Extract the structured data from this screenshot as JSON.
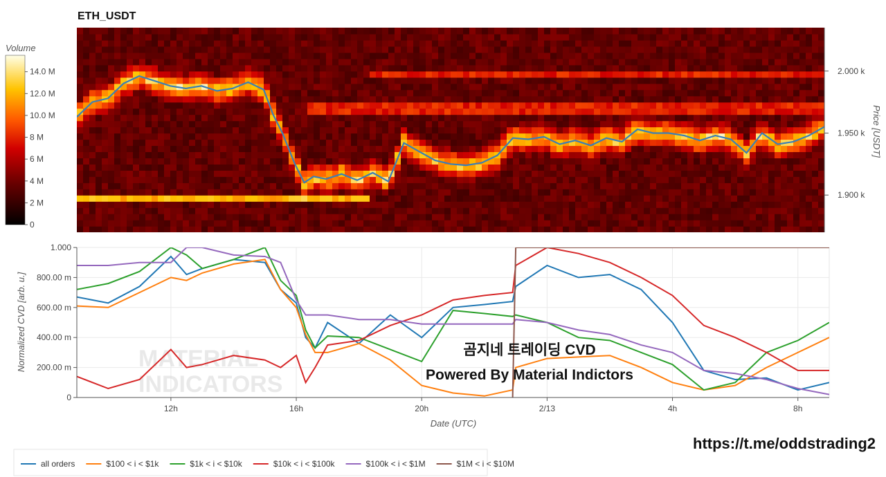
{
  "title": "ETH_USDT",
  "colorbar": {
    "title": "Volume",
    "ticks": [
      "0",
      "2 M",
      "4 M",
      "6 M",
      "8 M",
      "10.0 M",
      "12.0 M",
      "14.0 M"
    ]
  },
  "overlay": {
    "title_line": "곰지네 트레이딩 CVD",
    "subtitle_line": "Powered By Material Indictors",
    "watermark_line1": "MATERIAL",
    "watermark_line2": "INDICATORS"
  },
  "url": "https://t.me/oddstrading2",
  "colors": {
    "all_orders": "#1f77b4",
    "s100_1k": "#ff7f0e",
    "s1k_10k": "#2ca02c",
    "s10k_100k": "#d62728",
    "s100k_1m": "#9467bd",
    "s1m_10m": "#8c564b",
    "price_line": "#3a7fb8"
  },
  "chart_data": [
    {
      "type": "heatmap",
      "title": "ETH_USDT",
      "ylabel": "Price [USDT]",
      "x_range": [
        "2/12 09:00",
        "2/13 09:00"
      ],
      "ylim": [
        1870,
        2035
      ],
      "y_ticks": [
        "1.900 k",
        "1.950 k",
        "2.000 k"
      ],
      "y_tick_values": [
        1900,
        1950,
        2000
      ],
      "zlabel": "Volume",
      "z_range": [
        0,
        15500000
      ],
      "notable_bands": [
        {
          "price": 1897,
          "x_range": [
            "09:00",
            "18:20"
          ],
          "intensity": "high"
        },
        {
          "price": 1970,
          "x_range": [
            "16:30",
            "09:00"
          ],
          "intensity": "medium"
        },
        {
          "price": 1998,
          "x_range": [
            "18:30",
            "09:00"
          ],
          "intensity": "medium"
        }
      ],
      "price_line": {
        "name": "price",
        "x_hours": [
          0,
          0.5,
          1,
          1.5,
          2,
          2.5,
          3,
          3.5,
          4,
          4.5,
          5,
          5.5,
          6,
          6.3,
          6.6,
          7,
          7.3,
          7.6,
          8,
          8.5,
          9,
          9.5,
          10,
          10.5,
          11,
          11.5,
          12,
          12.5,
          13,
          13.5,
          14,
          14.5,
          15,
          15.5,
          16,
          16.5,
          17,
          17.5,
          18,
          18.5,
          19,
          19.5,
          20,
          20.5,
          21,
          21.5,
          22,
          22.5,
          23,
          23.5,
          24
        ],
        "price": [
          1963,
          1975,
          1978,
          1990,
          1996,
          1992,
          1988,
          1986,
          1988,
          1984,
          1986,
          1991,
          1985,
          1965,
          1950,
          1925,
          1910,
          1915,
          1913,
          1917,
          1912,
          1918,
          1911,
          1942,
          1935,
          1928,
          1925,
          1924,
          1926,
          1932,
          1946,
          1945,
          1947,
          1941,
          1944,
          1940,
          1946,
          1943,
          1953,
          1950,
          1950,
          1948,
          1944,
          1948,
          1945,
          1934,
          1950,
          1941,
          1943,
          1948,
          1955
        ]
      }
    },
    {
      "type": "line",
      "xlabel": "Date (UTC)",
      "ylabel": "Normalized CVD [arb. u.]",
      "x_ticks": [
        "12h",
        "16h",
        "20h",
        "2/13",
        "4h",
        "8h"
      ],
      "x_tick_hours": [
        3,
        7,
        11,
        15,
        19,
        23
      ],
      "ylim": [
        0,
        1.0
      ],
      "y_ticks": [
        "0",
        "200.00 m",
        "400.00 m",
        "600.00 m",
        "800.00 m",
        "1.000"
      ],
      "y_tick_values": [
        0,
        0.2,
        0.4,
        0.6,
        0.8,
        1.0
      ],
      "grid": true,
      "legend_position": "bottom",
      "x_hours": [
        0,
        1,
        2,
        3,
        3.5,
        4,
        5,
        6,
        6.5,
        7,
        7.3,
        7.6,
        8,
        9,
        10,
        11,
        12,
        13,
        13.9,
        14,
        15,
        16,
        17,
        18,
        19,
        20,
        21,
        22,
        23,
        24
      ],
      "series": [
        {
          "name": "all orders",
          "key": "all_orders",
          "values": [
            0.67,
            0.63,
            0.74,
            0.94,
            0.82,
            0.86,
            0.92,
            0.9,
            0.72,
            0.63,
            0.4,
            0.33,
            0.5,
            0.36,
            0.55,
            0.4,
            0.6,
            0.62,
            0.64,
            0.74,
            0.88,
            0.8,
            0.82,
            0.72,
            0.5,
            0.18,
            0.12,
            0.13,
            0.05,
            0.1
          ]
        },
        {
          "name": "$100 < i < $1k",
          "key": "s100_1k",
          "values": [
            0.61,
            0.6,
            0.7,
            0.8,
            0.78,
            0.83,
            0.89,
            0.92,
            0.72,
            0.6,
            0.42,
            0.3,
            0.3,
            0.36,
            0.25,
            0.08,
            0.03,
            0.01,
            0.05,
            0.2,
            0.26,
            0.27,
            0.28,
            0.2,
            0.1,
            0.05,
            0.08,
            0.2,
            0.3,
            0.4
          ]
        },
        {
          "name": "$1k < i < $10k",
          "key": "s1k_10k",
          "values": [
            0.72,
            0.76,
            0.84,
            1.0,
            0.95,
            0.86,
            0.92,
            1.0,
            0.78,
            0.68,
            0.45,
            0.33,
            0.41,
            0.4,
            0.32,
            0.24,
            0.58,
            0.56,
            0.54,
            0.55,
            0.5,
            0.4,
            0.38,
            0.3,
            0.22,
            0.05,
            0.1,
            0.3,
            0.38,
            0.5
          ]
        },
        {
          "name": "$10k < i < $100k",
          "key": "s10k_100k",
          "values": [
            0.14,
            0.06,
            0.12,
            0.32,
            0.2,
            0.22,
            0.28,
            0.25,
            0.2,
            0.28,
            0.1,
            0.2,
            0.35,
            0.38,
            0.48,
            0.55,
            0.65,
            0.68,
            0.7,
            0.88,
            1.0,
            0.96,
            0.9,
            0.8,
            0.68,
            0.48,
            0.4,
            0.3,
            0.18,
            0.18
          ]
        },
        {
          "name": "$100k < i < $1M",
          "key": "s100k_1m",
          "values": [
            0.88,
            0.88,
            0.9,
            0.9,
            1.0,
            1.0,
            0.95,
            0.94,
            0.9,
            0.65,
            0.55,
            0.55,
            0.55,
            0.52,
            0.52,
            0.49,
            0.49,
            0.49,
            0.49,
            0.52,
            0.5,
            0.45,
            0.42,
            0.35,
            0.3,
            0.18,
            0.16,
            0.12,
            0.06,
            0.02
          ]
        },
        {
          "name": "$1M < i < $10M",
          "key": "s1m_10m",
          "values": [
            null,
            null,
            null,
            null,
            null,
            null,
            null,
            null,
            null,
            null,
            null,
            null,
            null,
            null,
            null,
            null,
            null,
            null,
            0.0,
            1.0,
            1.0,
            1.0,
            1.0,
            1.0,
            1.0,
            1.0,
            1.0,
            1.0,
            1.0,
            1.0
          ]
        }
      ]
    }
  ]
}
